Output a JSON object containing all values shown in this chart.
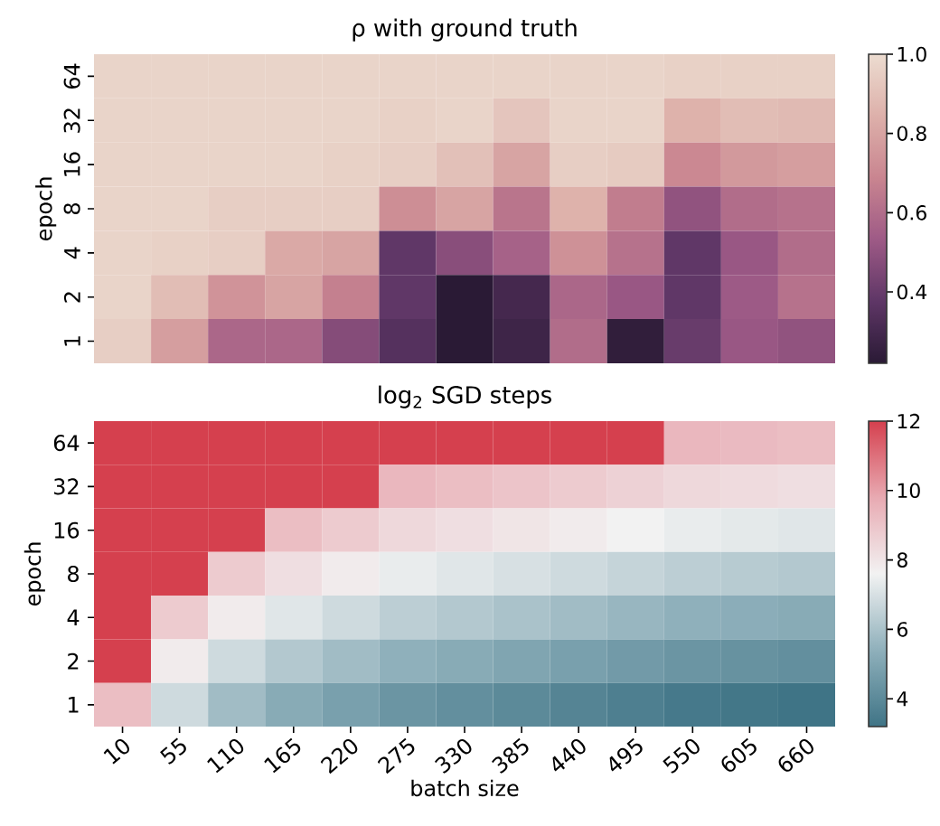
{
  "chart_data": [
    {
      "type": "heatmap",
      "title": "ρ with ground truth",
      "ylabel": "epoch",
      "tick_labels": "y",
      "categories": [
        "10",
        "55",
        "110",
        "165",
        "220",
        "275",
        "330",
        "385",
        "440",
        "495",
        "550",
        "605",
        "660"
      ],
      "y_categories": [
        "64",
        "32",
        "16",
        "8",
        "4",
        "2",
        "1"
      ],
      "cells": [
        [
          0.97,
          0.97,
          0.97,
          0.97,
          0.97,
          0.97,
          0.97,
          0.97,
          0.97,
          0.97,
          0.96,
          0.96,
          0.96
        ],
        [
          0.97,
          0.97,
          0.97,
          0.97,
          0.97,
          0.96,
          0.97,
          0.92,
          0.97,
          0.97,
          0.85,
          0.89,
          0.88
        ],
        [
          0.97,
          0.97,
          0.97,
          0.97,
          0.96,
          0.95,
          0.9,
          0.8,
          0.95,
          0.94,
          0.7,
          0.76,
          0.78
        ],
        [
          0.97,
          0.97,
          0.95,
          0.95,
          0.95,
          0.72,
          0.8,
          0.63,
          0.85,
          0.66,
          0.5,
          0.6,
          0.62
        ],
        [
          0.97,
          0.96,
          0.95,
          0.82,
          0.8,
          0.38,
          0.48,
          0.56,
          0.73,
          0.62,
          0.38,
          0.52,
          0.6
        ],
        [
          0.97,
          0.89,
          0.74,
          0.8,
          0.67,
          0.38,
          0.22,
          0.3,
          0.58,
          0.52,
          0.38,
          0.53,
          0.62
        ],
        [
          0.95,
          0.78,
          0.58,
          0.58,
          0.47,
          0.35,
          0.22,
          0.28,
          0.6,
          0.24,
          0.4,
          0.52,
          0.5
        ]
      ],
      "clim": [
        0.22,
        1.0
      ],
      "cticks": [
        0.4,
        0.6,
        0.8,
        {
          "value": 1,
          "label": "1.0"
        }
      ],
      "colors": [
        "#2a1a35",
        "#5e3666",
        "#9e5a86",
        "#c98590",
        "#ddb0aa",
        "#ecdcd0"
      ]
    },
    {
      "type": "heatmap",
      "title": "log$_{2}$ SGD steps",
      "xlabel": "batch size",
      "ylabel": "epoch",
      "categories": [
        "10",
        "55",
        "110",
        "165",
        "220",
        "275",
        "330",
        "385",
        "440",
        "495",
        "550",
        "605",
        "660"
      ],
      "y_categories": [
        "64",
        "32",
        "16",
        "8",
        "4",
        "2",
        "1"
      ],
      "cells": [
        [
          12,
          12,
          12,
          12,
          12,
          12,
          12,
          12,
          12,
          12,
          9.4,
          9.3,
          9.2
        ],
        [
          12,
          12,
          12,
          12,
          12,
          9.4,
          9.2,
          9.0,
          8.8,
          8.6,
          8.4,
          8.3,
          8.2
        ],
        [
          12,
          12,
          12,
          9.2,
          8.8,
          8.4,
          8.2,
          8.0,
          7.8,
          7.6,
          7.4,
          7.3,
          7.2
        ],
        [
          12,
          12,
          8.8,
          8.2,
          7.8,
          7.4,
          7.2,
          7.0,
          6.8,
          6.6,
          6.4,
          6.3,
          6.2
        ],
        [
          12,
          8.8,
          7.8,
          7.2,
          6.8,
          6.4,
          6.2,
          6.0,
          5.8,
          5.6,
          5.4,
          5.3,
          5.2
        ],
        [
          12,
          7.8,
          6.8,
          6.2,
          5.8,
          5.4,
          5.2,
          5.0,
          4.8,
          4.6,
          4.4,
          4.3,
          4.2
        ],
        [
          9.2,
          6.8,
          5.8,
          5.2,
          4.8,
          4.4,
          4.2,
          4.0,
          3.8,
          3.6,
          3.4,
          3.3,
          3.2
        ]
      ],
      "clim": [
        3.2,
        12
      ],
      "cticks": [
        4,
        6,
        8,
        10,
        12
      ],
      "colors": [
        "#3f7486",
        "#8fb0bb",
        "#f2f2f2",
        "#e8aab2",
        "#d5404e"
      ]
    }
  ]
}
